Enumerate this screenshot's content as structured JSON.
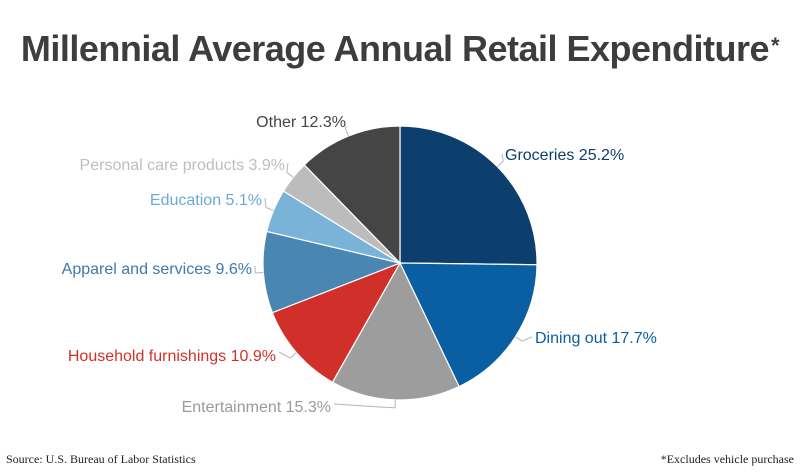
{
  "chart_data": {
    "type": "pie",
    "title": "Millennial Average Annual Retail Expenditure",
    "title_marker": "*",
    "slices": [
      {
        "label": "Groceries",
        "value": 25.2,
        "display": "25.2%",
        "color": "#0d3f6e",
        "label_color": "#0d3f6e"
      },
      {
        "label": "Dining out",
        "value": 17.7,
        "display": "17.7%",
        "color": "#0a5fa3",
        "label_color": "#0a5fa3"
      },
      {
        "label": "Entertainment",
        "value": 15.3,
        "display": "15.3%",
        "color": "#9d9d9d",
        "label_color": "#9a9a9a"
      },
      {
        "label": "Household furnishings",
        "value": 10.9,
        "display": "10.9%",
        "color": "#d1302a",
        "label_color": "#d1302a"
      },
      {
        "label": "Apparel and services",
        "value": 9.6,
        "display": "9.6%",
        "color": "#4a86b2",
        "label_color": "#3e7aa8"
      },
      {
        "label": "Education",
        "value": 5.1,
        "display": "5.1%",
        "color": "#7ab3d8",
        "label_color": "#6aaad6"
      },
      {
        "label": "Personal care products",
        "value": 3.9,
        "display": "3.9%",
        "color": "#bcbcbc",
        "label_color": "#bdbdbd"
      },
      {
        "label": "Other",
        "value": 12.3,
        "display": "12.3%",
        "color": "#454545",
        "label_color": "#454545"
      }
    ]
  },
  "footer": {
    "source": "Source: U.S. Bureau of Labor Statistics",
    "note": "*Excludes vehicle purchase"
  }
}
